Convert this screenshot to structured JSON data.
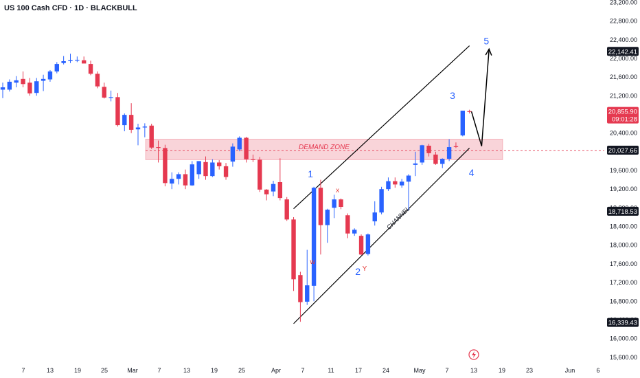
{
  "header": {
    "title": "US 100 Cash CFD · 1D · BLACKBULL"
  },
  "colors": {
    "up": "#2962ff",
    "down": "#e53950",
    "zone_fill": "#f7c6cc",
    "zone_text": "#e53950",
    "wave_label": "#2962ff",
    "line": "#000000",
    "tag_dark": "#131722",
    "tag_red": "#e53950"
  },
  "chart_data": {
    "type": "candlestick",
    "title": "US 100 Cash CFD · 1D · BLACKBULL",
    "ylim": [
      15450,
      23250
    ],
    "y_ticks": [
      "23,200.00",
      "22,800.00",
      "22,400.00",
      "22,000.00",
      "21,600.00",
      "21,200.00",
      "20,800.00",
      "20,400.00",
      "20,000.00",
      "19,600.00",
      "19,200.00",
      "18,800.00",
      "18,400.00",
      "18,000.00",
      "17,600.00",
      "17,200.00",
      "16,800.00",
      "16,400.00",
      "16,000.00",
      "15,600.00"
    ],
    "x_ticks": [
      "7",
      "13",
      "19",
      "25",
      "Mar",
      "7",
      "13",
      "19",
      "25",
      "Apr",
      "7",
      "11",
      "17",
      "24",
      "May",
      "7",
      "13",
      "19",
      "23",
      "Jun",
      "6"
    ],
    "price_tags": [
      {
        "label": "22,142.41",
        "value": 22142.41,
        "style": "dark"
      },
      {
        "label": "20,855.90",
        "sub": "09:01:28",
        "value": 20855.9,
        "style": "red"
      },
      {
        "label": "20,027.66",
        "value": 20027.66,
        "style": "dark"
      },
      {
        "label": "18,718.53",
        "value": 18718.53,
        "style": "dark"
      },
      {
        "label": "16,339.43",
        "value": 16339.43,
        "style": "dark"
      }
    ],
    "candles": [
      {
        "o": 21330,
        "h": 21480,
        "l": 21150,
        "c": 21380
      },
      {
        "o": 21330,
        "h": 21550,
        "l": 21290,
        "c": 21500
      },
      {
        "o": 21480,
        "h": 21620,
        "l": 21380,
        "c": 21530
      },
      {
        "o": 21560,
        "h": 21720,
        "l": 21380,
        "c": 21450
      },
      {
        "o": 21480,
        "h": 21580,
        "l": 21200,
        "c": 21250
      },
      {
        "o": 21260,
        "h": 21580,
        "l": 21200,
        "c": 21510
      },
      {
        "o": 21520,
        "h": 21650,
        "l": 21300,
        "c": 21560
      },
      {
        "o": 21550,
        "h": 21750,
        "l": 21500,
        "c": 21720
      },
      {
        "o": 21720,
        "h": 21920,
        "l": 21680,
        "c": 21880
      },
      {
        "o": 21900,
        "h": 22050,
        "l": 21870,
        "c": 21940
      },
      {
        "o": 21940,
        "h": 22100,
        "l": 21900,
        "c": 21960
      },
      {
        "o": 21960,
        "h": 22040,
        "l": 21920,
        "c": 21970
      },
      {
        "o": 21960,
        "h": 22040,
        "l": 21900,
        "c": 21890
      },
      {
        "o": 21880,
        "h": 21950,
        "l": 21640,
        "c": 21670
      },
      {
        "o": 21670,
        "h": 21720,
        "l": 21360,
        "c": 21400
      },
      {
        "o": 21390,
        "h": 21480,
        "l": 21140,
        "c": 21160
      },
      {
        "o": 21160,
        "h": 21310,
        "l": 21080,
        "c": 21170
      },
      {
        "o": 21170,
        "h": 21260,
        "l": 20540,
        "c": 20570
      },
      {
        "o": 20570,
        "h": 20820,
        "l": 20440,
        "c": 20790
      },
      {
        "o": 20790,
        "h": 21040,
        "l": 20400,
        "c": 20470
      },
      {
        "o": 20480,
        "h": 20600,
        "l": 20140,
        "c": 20520
      },
      {
        "o": 20520,
        "h": 20610,
        "l": 20310,
        "c": 20540
      },
      {
        "o": 20560,
        "h": 20600,
        "l": 20060,
        "c": 20090
      },
      {
        "o": 20100,
        "h": 20240,
        "l": 19770,
        "c": 20090
      },
      {
        "o": 20080,
        "h": 20150,
        "l": 19260,
        "c": 19330
      },
      {
        "o": 19320,
        "h": 19560,
        "l": 19200,
        "c": 19420
      },
      {
        "o": 19420,
        "h": 19560,
        "l": 19300,
        "c": 19520
      },
      {
        "o": 19520,
        "h": 19620,
        "l": 19200,
        "c": 19280
      },
      {
        "o": 19280,
        "h": 19800,
        "l": 19270,
        "c": 19730
      },
      {
        "o": 19520,
        "h": 19800,
        "l": 19420,
        "c": 19800
      },
      {
        "o": 19780,
        "h": 19900,
        "l": 19400,
        "c": 19480
      },
      {
        "o": 19480,
        "h": 19840,
        "l": 19460,
        "c": 19770
      },
      {
        "o": 19770,
        "h": 19820,
        "l": 19620,
        "c": 19690
      },
      {
        "o": 19690,
        "h": 19760,
        "l": 19400,
        "c": 19460
      },
      {
        "o": 19790,
        "h": 20180,
        "l": 19680,
        "c": 20110
      },
      {
        "o": 20050,
        "h": 20330,
        "l": 20010,
        "c": 20300
      },
      {
        "o": 20300,
        "h": 20320,
        "l": 19770,
        "c": 19840
      },
      {
        "o": 19840,
        "h": 19940,
        "l": 19780,
        "c": 19830
      },
      {
        "o": 19830,
        "h": 19890,
        "l": 19140,
        "c": 19190
      },
      {
        "o": 19190,
        "h": 19200,
        "l": 18960,
        "c": 19090
      },
      {
        "o": 19150,
        "h": 19380,
        "l": 19050,
        "c": 19310
      },
      {
        "o": 19350,
        "h": 19860,
        "l": 18960,
        "c": 19010
      },
      {
        "o": 18980,
        "h": 19030,
        "l": 18520,
        "c": 18550
      },
      {
        "o": 18550,
        "h": 18600,
        "l": 17020,
        "c": 17270
      },
      {
        "o": 17360,
        "h": 17430,
        "l": 16360,
        "c": 16780
      },
      {
        "o": 16790,
        "h": 17900,
        "l": 16720,
        "c": 17140
      },
      {
        "o": 17130,
        "h": 19250,
        "l": 16800,
        "c": 19230
      },
      {
        "o": 19230,
        "h": 19400,
        "l": 17800,
        "c": 18430
      },
      {
        "o": 18430,
        "h": 18780,
        "l": 18050,
        "c": 18760
      },
      {
        "o": 18800,
        "h": 19080,
        "l": 18580,
        "c": 18980
      },
      {
        "o": 18980,
        "h": 19000,
        "l": 18770,
        "c": 18820
      },
      {
        "o": 18640,
        "h": 18680,
        "l": 18150,
        "c": 18250
      },
      {
        "o": 18250,
        "h": 18360,
        "l": 18200,
        "c": 18330
      },
      {
        "o": 18200,
        "h": 18230,
        "l": 17790,
        "c": 17800
      },
      {
        "o": 17810,
        "h": 18250,
        "l": 17780,
        "c": 18230
      },
      {
        "o": 18510,
        "h": 18940,
        "l": 18420,
        "c": 18700
      },
      {
        "o": 18700,
        "h": 19250,
        "l": 18660,
        "c": 19200
      },
      {
        "o": 19200,
        "h": 19450,
        "l": 19160,
        "c": 19370
      },
      {
        "o": 19370,
        "h": 19450,
        "l": 19230,
        "c": 19300
      },
      {
        "o": 19280,
        "h": 19420,
        "l": 19230,
        "c": 19360
      },
      {
        "o": 19360,
        "h": 19520,
        "l": 18750,
        "c": 19490
      },
      {
        "o": 19720,
        "h": 20000,
        "l": 19480,
        "c": 19750
      },
      {
        "o": 19770,
        "h": 20150,
        "l": 19720,
        "c": 20140
      },
      {
        "o": 20130,
        "h": 20170,
        "l": 19900,
        "c": 19970
      },
      {
        "o": 19940,
        "h": 20000,
        "l": 19720,
        "c": 19740
      },
      {
        "o": 19740,
        "h": 19860,
        "l": 19650,
        "c": 19850
      },
      {
        "o": 19850,
        "h": 20270,
        "l": 19800,
        "c": 20100
      },
      {
        "o": 20120,
        "h": 20200,
        "l": 20080,
        "c": 20110
      },
      {
        "o": 20350,
        "h": 20880,
        "l": 20330,
        "c": 20880
      },
      {
        "o": 20870,
        "h": 20900,
        "l": 20820,
        "c": 20856
      }
    ],
    "zone": {
      "label": "DEMAND ZONE",
      "top": 20270,
      "bottom": 19830,
      "mid": 20027.66
    },
    "channel": {
      "label": "CHANNEL",
      "lower": [
        {
          "i": 43,
          "v": 16320
        },
        {
          "i": 69,
          "v": 20080
        }
      ],
      "upper": [
        {
          "i": 43,
          "v": 18780
        },
        {
          "i": 69,
          "v": 22270
        }
      ]
    },
    "projection": [
      {
        "i": 69.3,
        "v": 20860
      },
      {
        "i": 70.8,
        "v": 20120
      },
      {
        "i": 71.9,
        "v": 22200
      }
    ],
    "wave_labels": [
      {
        "text": "1",
        "i": 45.5,
        "v": 19450,
        "kind": "wave"
      },
      {
        "text": "2",
        "i": 52.5,
        "v": 17360,
        "kind": "wave"
      },
      {
        "text": "3",
        "i": 66.5,
        "v": 21130,
        "kind": "wave"
      },
      {
        "text": "4",
        "i": 69.3,
        "v": 19480,
        "kind": "wave"
      },
      {
        "text": "5",
        "i": 71.5,
        "v": 22300,
        "kind": "wave"
      },
      {
        "text": "x",
        "i": 49.5,
        "v": 19130,
        "kind": "sub"
      },
      {
        "text": "w",
        "i": 45.8,
        "v": 17600,
        "kind": "sub"
      },
      {
        "text": "Y",
        "i": 53.5,
        "v": 17450,
        "kind": "sub"
      }
    ]
  }
}
